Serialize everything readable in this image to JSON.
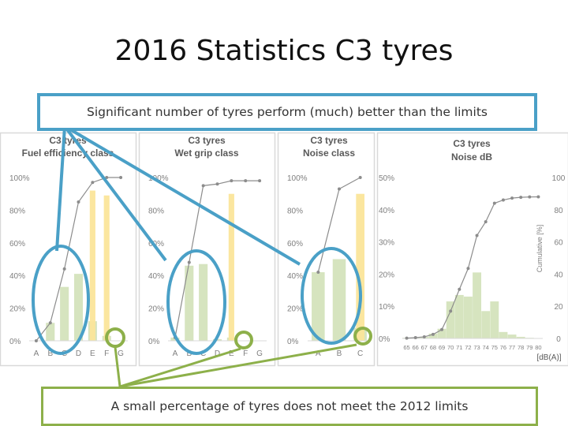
{
  "title": "2016 Statistics C3 tyres",
  "callouts": {
    "top": "Significant number of tyres perform (much) better than the limits",
    "bottom": "A small percentage of tyres does not meet the 2012 limits"
  },
  "colors": {
    "bar": "#d6e4bf",
    "limit_bar": "#fbe59a",
    "line": "#8c8c8c",
    "top_callout": "#4aa0c7",
    "bottom_callout": "#8db04a"
  },
  "chart_data": [
    {
      "type": "bar",
      "title": "C3 tyres Fuel efficiency class",
      "categories": [
        "A",
        "B",
        "C",
        "D",
        "E",
        "F",
        "G"
      ],
      "ylim": [
        0,
        1
      ],
      "y_ticks": [
        "0%",
        "20%",
        "40%",
        "60%",
        "80%",
        "100%"
      ],
      "series": [
        {
          "kind": "bar",
          "values": [
            0.0,
            0.11,
            0.33,
            0.41,
            0.12,
            0.03,
            0.0
          ]
        },
        {
          "kind": "line",
          "values": [
            0.0,
            0.11,
            0.44,
            0.85,
            0.97,
            1.0,
            1.0
          ]
        }
      ],
      "limit_bars": {
        "categories": [
          "E",
          "F"
        ],
        "values": [
          0.92,
          0.89
        ]
      }
    },
    {
      "type": "bar",
      "title": "C3 tyres Wet grip class",
      "categories": [
        "A",
        "B",
        "C",
        "D",
        "E",
        "F",
        "G"
      ],
      "ylim": [
        0,
        1
      ],
      "y_ticks": [
        "0%",
        "20%",
        "40%",
        "60%",
        "80%",
        "100%"
      ],
      "series": [
        {
          "kind": "bar",
          "values": [
            0.02,
            0.46,
            0.47,
            0.01,
            0.02,
            0.0,
            0.0
          ]
        },
        {
          "kind": "line",
          "values": [
            0.02,
            0.48,
            0.95,
            0.96,
            0.98,
            0.98,
            0.98
          ]
        }
      ],
      "limit_bars": {
        "categories": [
          "E"
        ],
        "values": [
          0.9
        ]
      }
    },
    {
      "type": "bar",
      "title": "C3 tyres Noise class",
      "categories": [
        "A",
        "B",
        "C"
      ],
      "ylim": [
        0,
        1
      ],
      "y_ticks": [
        "0%",
        "20%",
        "40%",
        "60%",
        "80%",
        "100%"
      ],
      "series": [
        {
          "kind": "bar",
          "values": [
            0.42,
            0.5,
            0.08
          ]
        },
        {
          "kind": "line",
          "values": [
            0.42,
            0.93,
            1.0
          ]
        }
      ],
      "limit_bars": {
        "categories": [
          "C"
        ],
        "values": [
          0.9
        ]
      }
    },
    {
      "type": "bar",
      "title": "C3 tyres Noise dB",
      "xlabel": "[dB(A)]",
      "ylabel_right": "Cumulative [%]",
      "categories": [
        "65",
        "66",
        "67",
        "68",
        "69",
        "70",
        "71",
        "72",
        "73",
        "74",
        "75",
        "76",
        "77",
        "78",
        "79",
        "80"
      ],
      "ylim": [
        0,
        0.5
      ],
      "y_ticks": [
        "0%",
        "10%",
        "20%",
        "30%",
        "40%",
        "50%"
      ],
      "y2lim": [
        0,
        100
      ],
      "y2_ticks": [
        "0",
        "20",
        "40",
        "60",
        "80",
        "100"
      ],
      "series": [
        {
          "kind": "bar",
          "values": [
            0.002,
            0.003,
            0.005,
            0.015,
            0.03,
            0.115,
            0.135,
            0.13,
            0.205,
            0.085,
            0.115,
            0.02,
            0.012,
            0.005,
            0.002,
            0.001
          ]
        },
        {
          "kind": "line",
          "axis": "right",
          "values": [
            0.2,
            0.5,
            1,
            2.5,
            5.5,
            17,
            30.5,
            43.5,
            64,
            72.5,
            84,
            86,
            87.2,
            87.7,
            87.9,
            88
          ]
        }
      ]
    }
  ]
}
